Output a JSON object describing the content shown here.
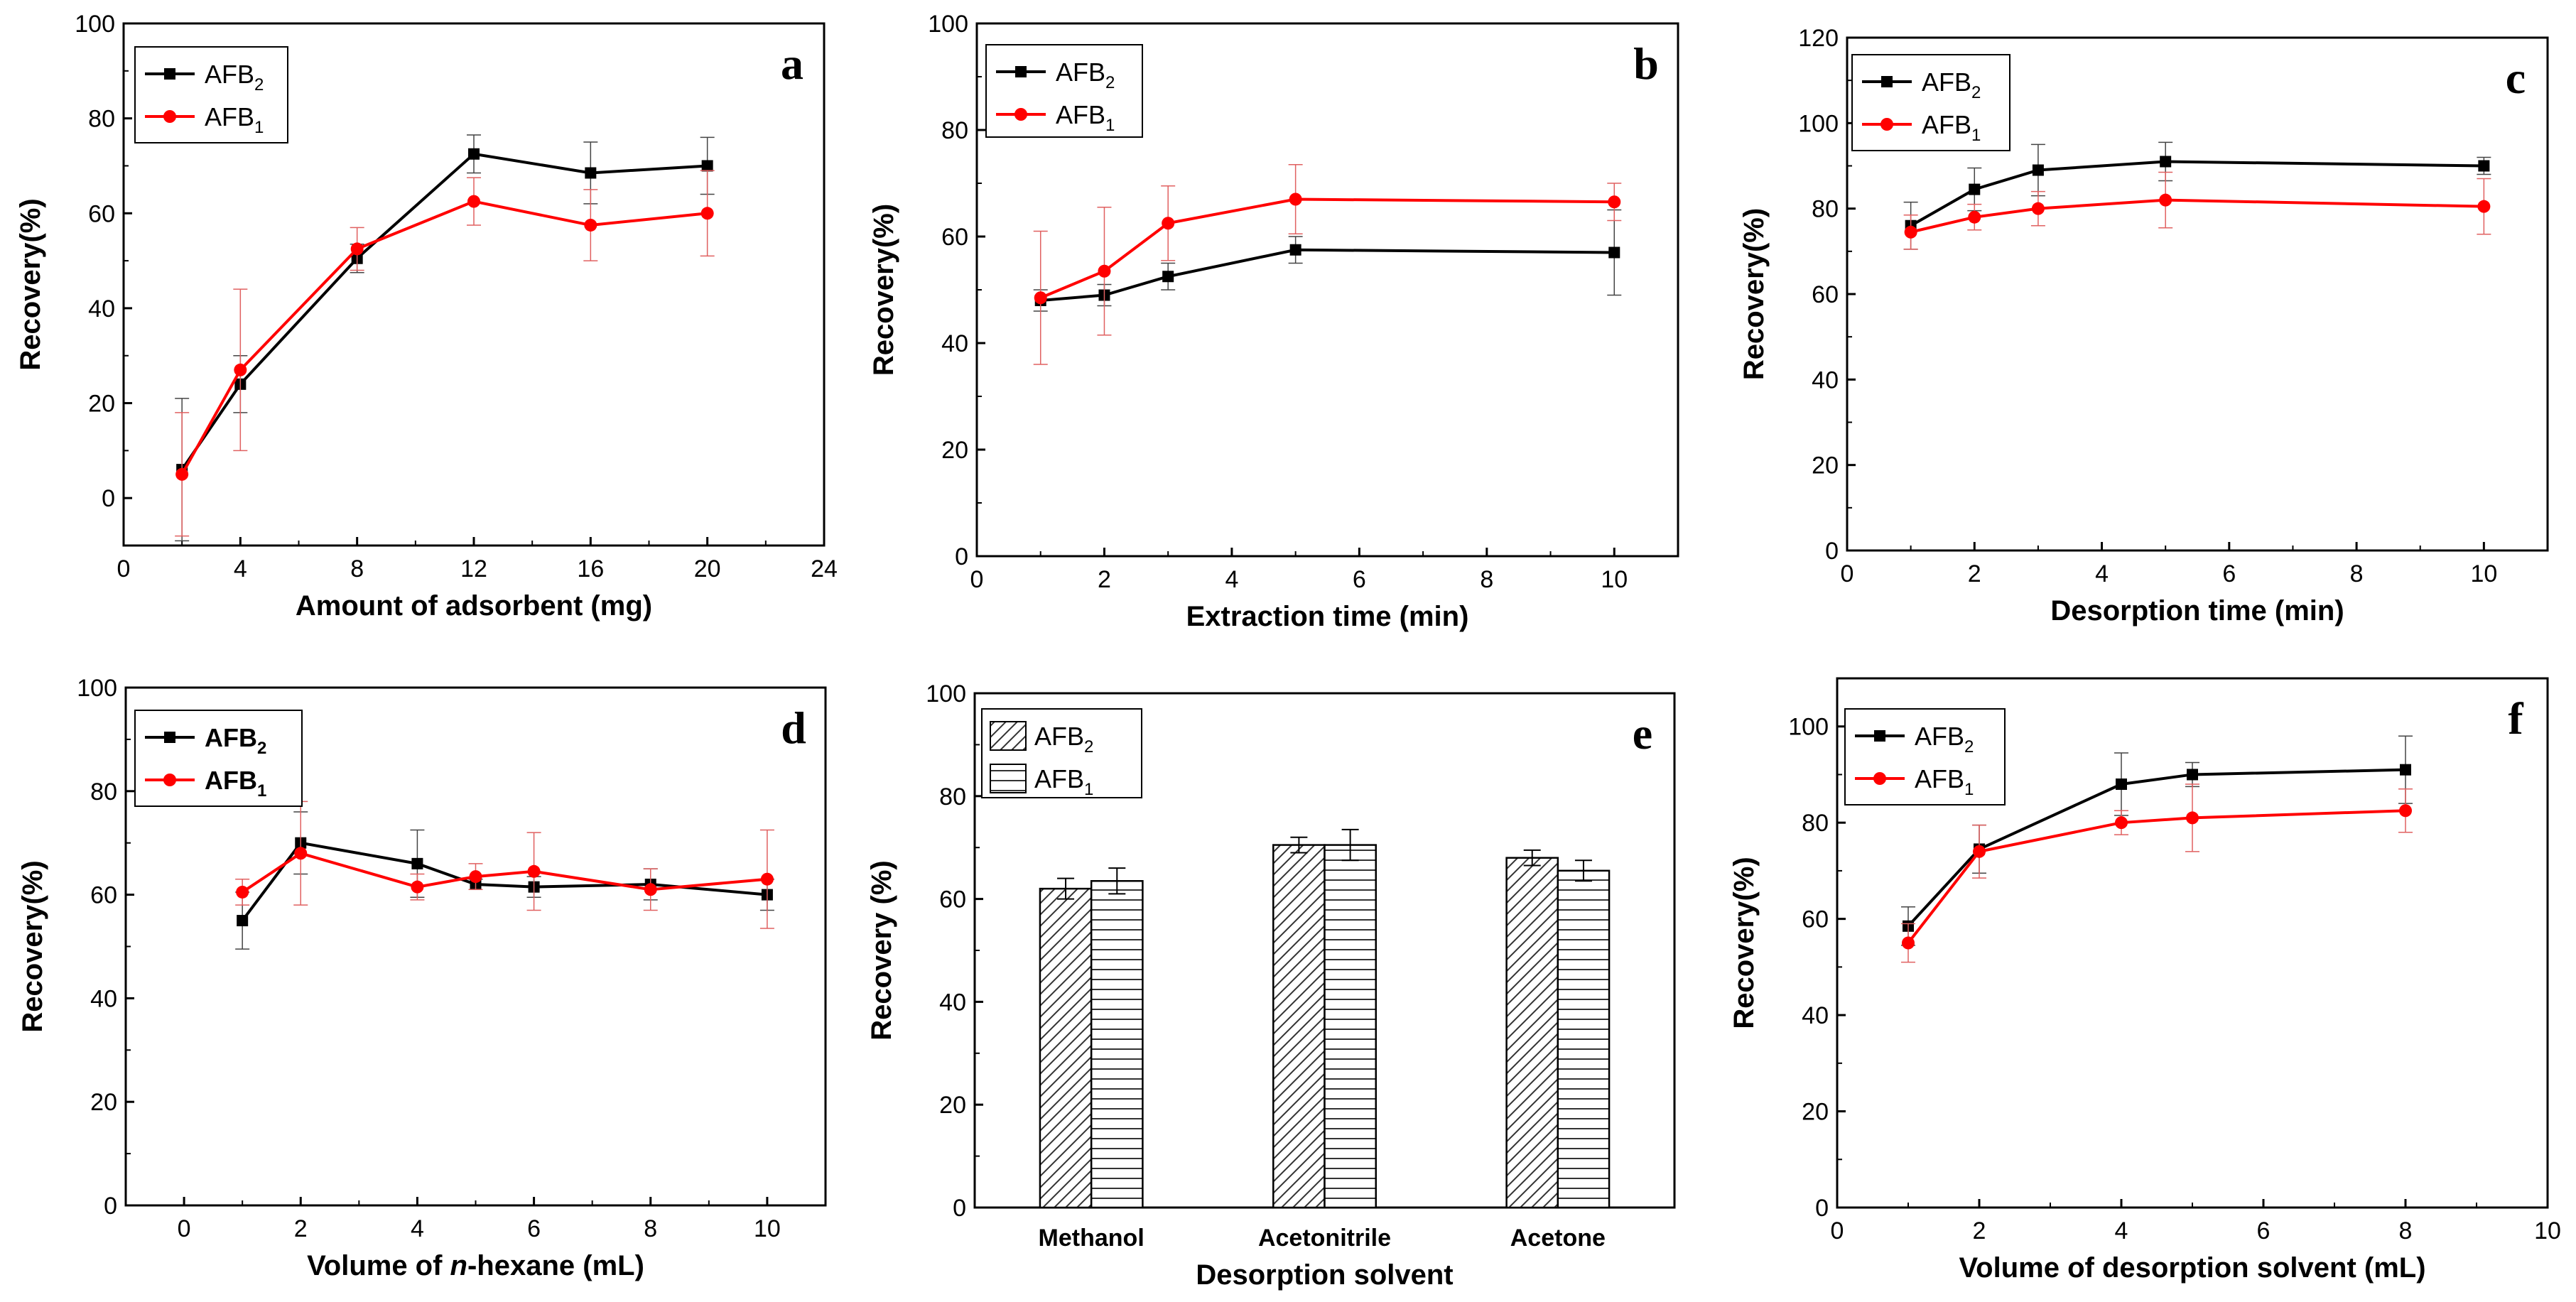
{
  "chart_data": [
    {
      "id": "a",
      "type": "line",
      "panel_label": "a",
      "xlabel": "Amount of adsorbent (mg)",
      "ylabel": "Recovery(%)",
      "xlim": [
        0,
        24
      ],
      "ylim": [
        -10,
        100
      ],
      "xticks": [
        0,
        4,
        8,
        12,
        16,
        20,
        24
      ],
      "yticks": [
        0,
        20,
        40,
        60,
        80,
        100
      ],
      "legend": [
        {
          "base": "AFB",
          "sub": "2"
        },
        {
          "base": "AFB",
          "sub": "1"
        }
      ],
      "legend_bold": false,
      "series": [
        {
          "name": "AFB2",
          "color": "#000000",
          "marker": "square",
          "x": [
            2,
            4,
            8,
            12,
            16,
            20
          ],
          "y": [
            6,
            24,
            50.5,
            72.5,
            68.5,
            70
          ],
          "err": [
            15,
            6,
            3,
            4,
            6.5,
            6
          ]
        },
        {
          "name": "AFB1",
          "color": "#ff0000",
          "marker": "circle",
          "x": [
            2,
            4,
            8,
            12,
            16,
            20
          ],
          "y": [
            5,
            27,
            52.5,
            62.5,
            57.5,
            60
          ],
          "err": [
            13,
            17,
            4.5,
            5,
            7.5,
            9
          ]
        }
      ]
    },
    {
      "id": "b",
      "type": "line",
      "panel_label": "b",
      "xlabel": "Extraction time (min)",
      "ylabel": "Recovery(%)",
      "xlim": [
        0,
        11
      ],
      "ylim": [
        0,
        100
      ],
      "xticks": [
        0,
        2,
        4,
        6,
        8,
        10
      ],
      "yticks": [
        0,
        20,
        40,
        60,
        80,
        100
      ],
      "legend": [
        {
          "base": "AFB",
          "sub": "2"
        },
        {
          "base": "AFB",
          "sub": "1"
        }
      ],
      "legend_bold": false,
      "series": [
        {
          "name": "AFB2",
          "color": "#000000",
          "marker": "square",
          "x": [
            1,
            2,
            3,
            5,
            10
          ],
          "y": [
            48,
            49,
            52.5,
            57.5,
            57
          ],
          "err": [
            2,
            2,
            2.5,
            2.5,
            8
          ]
        },
        {
          "name": "AFB1",
          "color": "#ff0000",
          "marker": "circle",
          "x": [
            1,
            2,
            3,
            5,
            10
          ],
          "y": [
            48.5,
            53.5,
            62.5,
            67,
            66.5
          ],
          "err": [
            12.5,
            12,
            7,
            6.5,
            3.5
          ]
        }
      ]
    },
    {
      "id": "c",
      "type": "line",
      "panel_label": "c",
      "xlabel": "Desorption time (min)",
      "ylabel": "Recovery(%)",
      "xlim": [
        0,
        11
      ],
      "ylim": [
        0,
        120
      ],
      "xticks": [
        0,
        2,
        4,
        6,
        8,
        10
      ],
      "yticks": [
        0,
        20,
        40,
        60,
        80,
        100,
        120
      ],
      "legend": [
        {
          "base": "AFB",
          "sub": "2"
        },
        {
          "base": "AFB",
          "sub": "1"
        }
      ],
      "legend_bold": false,
      "series": [
        {
          "name": "AFB2",
          "color": "#000000",
          "marker": "square",
          "x": [
            1,
            2,
            3,
            5,
            10
          ],
          "y": [
            76,
            84.5,
            89,
            91,
            90
          ],
          "err": [
            5.5,
            5,
            6,
            4.5,
            2
          ]
        },
        {
          "name": "AFB1",
          "color": "#ff0000",
          "marker": "circle",
          "x": [
            1,
            2,
            3,
            5,
            10
          ],
          "y": [
            74.5,
            78,
            80,
            82,
            80.5
          ],
          "err": [
            4,
            3,
            4,
            6.5,
            6.5
          ]
        }
      ]
    },
    {
      "id": "d",
      "type": "line",
      "panel_label": "d",
      "xlabel": "Volume of n-hexane (mL)",
      "xlabel_italic": "n",
      "ylabel": "Recovery(%)",
      "xlim": [
        -1,
        11
      ],
      "ylim": [
        0,
        100
      ],
      "xticks": [
        0,
        2,
        4,
        6,
        8,
        10
      ],
      "yticks": [
        0,
        20,
        40,
        60,
        80,
        100
      ],
      "legend": [
        {
          "base": "AFB",
          "sub": "2"
        },
        {
          "base": "AFB",
          "sub": "1"
        }
      ],
      "legend_bold": true,
      "series": [
        {
          "name": "AFB2",
          "color": "#000000",
          "marker": "square",
          "x": [
            1,
            2,
            4,
            5,
            6,
            8,
            10
          ],
          "y": [
            55,
            70,
            66,
            62,
            61.5,
            62,
            60
          ],
          "err": [
            5.5,
            6,
            6.5,
            1,
            2,
            3,
            3
          ]
        },
        {
          "name": "AFB1",
          "color": "#ff0000",
          "marker": "circle",
          "x": [
            1,
            2,
            4,
            5,
            6,
            8,
            10
          ],
          "y": [
            60.5,
            68,
            61.5,
            63.5,
            64.5,
            61,
            63
          ],
          "err": [
            2.5,
            10,
            2.5,
            2.5,
            7.5,
            4,
            9.5
          ]
        }
      ]
    },
    {
      "id": "e",
      "type": "bar",
      "panel_label": "e",
      "xlabel": "Desorption solvent",
      "ylabel": "Recovery (%)",
      "ylim": [
        0,
        100
      ],
      "yticks": [
        0,
        20,
        40,
        60,
        80,
        100
      ],
      "categories": [
        "Methanol",
        "Acetonitrile",
        "Acetone"
      ],
      "legend": [
        {
          "base": "AFB",
          "sub": "2"
        },
        {
          "base": "AFB",
          "sub": "1"
        }
      ],
      "legend_bold": false,
      "series": [
        {
          "name": "AFB2",
          "pattern": "diagonal",
          "values": [
            62,
            70.5,
            68
          ],
          "err": [
            2,
            1.5,
            1.5
          ]
        },
        {
          "name": "AFB1",
          "pattern": "horizontal",
          "values": [
            63.5,
            70.5,
            65.5
          ],
          "err": [
            2.5,
            3,
            2
          ]
        }
      ]
    },
    {
      "id": "f",
      "type": "line",
      "panel_label": "f",
      "xlabel": "Volume of desorption solvent (mL)",
      "ylabel": "Recovery(%)",
      "xlim": [
        0,
        10
      ],
      "ylim": [
        0,
        110
      ],
      "xticks": [
        0,
        2,
        4,
        6,
        8,
        10
      ],
      "yticks": [
        0,
        20,
        40,
        60,
        80,
        100
      ],
      "legend": [
        {
          "base": "AFB",
          "sub": "2"
        },
        {
          "base": "AFB",
          "sub": "1"
        }
      ],
      "legend_bold": false,
      "series": [
        {
          "name": "AFB2",
          "color": "#000000",
          "marker": "square",
          "x": [
            1,
            2,
            4,
            5,
            8
          ],
          "y": [
            58.5,
            74.5,
            88,
            90,
            91
          ],
          "err": [
            4,
            5,
            6.5,
            2.5,
            7
          ]
        },
        {
          "name": "AFB1",
          "color": "#ff0000",
          "marker": "circle",
          "x": [
            1,
            2,
            4,
            5,
            8
          ],
          "y": [
            55,
            74,
            80,
            81,
            82.5
          ],
          "err": [
            4,
            5.5,
            2.5,
            7,
            4.5
          ]
        }
      ]
    }
  ]
}
